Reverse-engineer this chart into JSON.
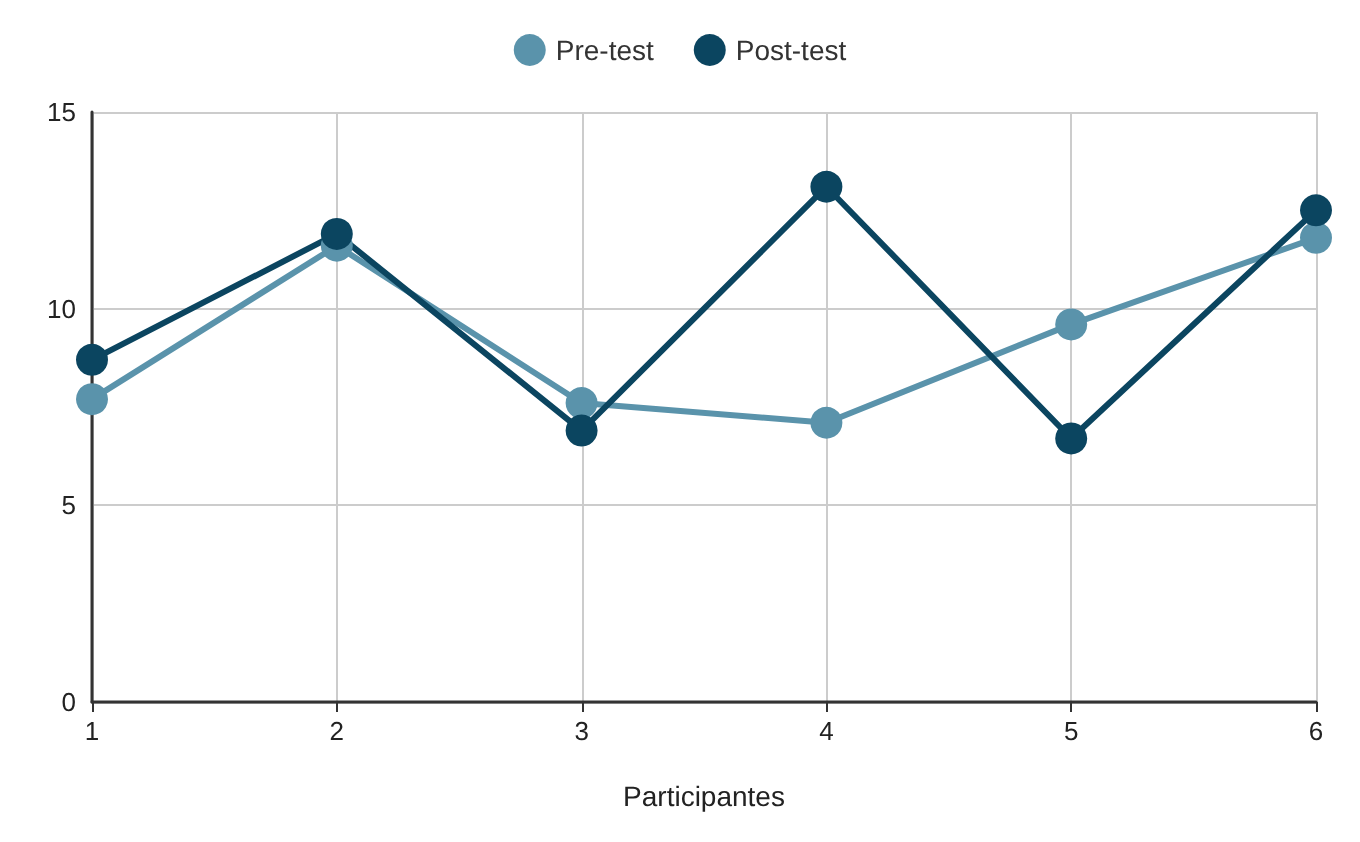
{
  "chart_data": {
    "type": "line",
    "xlabel": "Participantes",
    "x": [
      1,
      2,
      3,
      4,
      5,
      6
    ],
    "series": [
      {
        "name": "Pre-test",
        "color": "#5a93ab",
        "values": [
          7.7,
          11.6,
          7.6,
          7.1,
          9.6,
          11.8
        ]
      },
      {
        "name": "Post-test",
        "color": "#0b4560",
        "values": [
          8.7,
          11.9,
          6.9,
          13.1,
          6.7,
          12.5
        ]
      }
    ],
    "xlim": [
      1,
      6
    ],
    "xticks": [
      1,
      2,
      3,
      4,
      5,
      6
    ],
    "ylim": [
      0,
      15
    ],
    "yticks": [
      0,
      5,
      10,
      15
    ],
    "grid": true,
    "legend": "top",
    "marker": "circle",
    "line_style": "solid"
  }
}
